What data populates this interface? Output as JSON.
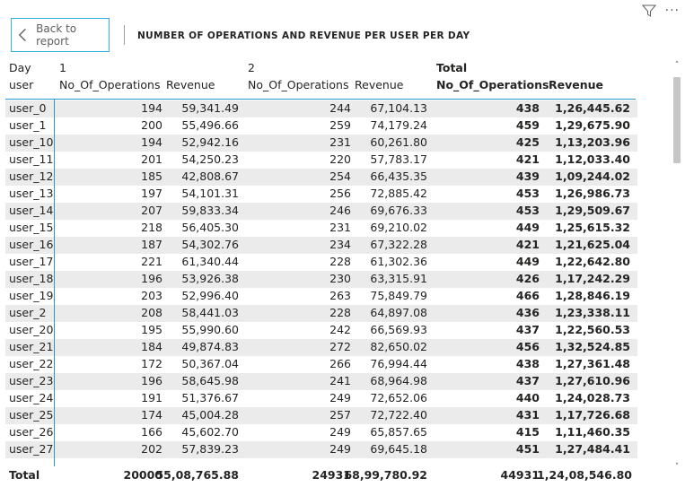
{
  "toolbar": {
    "back_label": "Back to report",
    "filter_icon": "filter-icon",
    "more_label": "···"
  },
  "title": "NUMBER OF OPERATIONS AND REVENUE PER USER PER DAY",
  "header": {
    "row1": {
      "col0": "Day",
      "g1": "1",
      "g2": "2",
      "gtotal": "Total"
    },
    "row2": {
      "col0": "user",
      "ops1": "No_Of_Operations",
      "rev1": "Revenue",
      "ops2": "No_Of_Operations",
      "rev2": "Revenue",
      "opst": "No_Of_Operations",
      "revt": "Revenue"
    }
  },
  "rows": [
    {
      "user": "user_0",
      "ops1": "194",
      "rev1": "59,341.49",
      "ops2": "244",
      "rev2": "67,104.13",
      "opst": "438",
      "revt": "1,26,445.62"
    },
    {
      "user": "user_1",
      "ops1": "200",
      "rev1": "55,496.66",
      "ops2": "259",
      "rev2": "74,179.24",
      "opst": "459",
      "revt": "1,29,675.90"
    },
    {
      "user": "user_10",
      "ops1": "194",
      "rev1": "52,942.16",
      "ops2": "231",
      "rev2": "60,261.80",
      "opst": "425",
      "revt": "1,13,203.96"
    },
    {
      "user": "user_11",
      "ops1": "201",
      "rev1": "54,250.23",
      "ops2": "220",
      "rev2": "57,783.17",
      "opst": "421",
      "revt": "1,12,033.40"
    },
    {
      "user": "user_12",
      "ops1": "185",
      "rev1": "42,808.67",
      "ops2": "254",
      "rev2": "66,435.35",
      "opst": "439",
      "revt": "1,09,244.02"
    },
    {
      "user": "user_13",
      "ops1": "197",
      "rev1": "54,101.31",
      "ops2": "256",
      "rev2": "72,885.42",
      "opst": "453",
      "revt": "1,26,986.73"
    },
    {
      "user": "user_14",
      "ops1": "207",
      "rev1": "59,833.34",
      "ops2": "246",
      "rev2": "69,676.33",
      "opst": "453",
      "revt": "1,29,509.67"
    },
    {
      "user": "user_15",
      "ops1": "218",
      "rev1": "56,405.30",
      "ops2": "231",
      "rev2": "69,210.02",
      "opst": "449",
      "revt": "1,25,615.32"
    },
    {
      "user": "user_16",
      "ops1": "187",
      "rev1": "54,302.76",
      "ops2": "234",
      "rev2": "67,322.28",
      "opst": "421",
      "revt": "1,21,625.04"
    },
    {
      "user": "user_17",
      "ops1": "221",
      "rev1": "61,340.44",
      "ops2": "228",
      "rev2": "61,302.36",
      "opst": "449",
      "revt": "1,22,642.80"
    },
    {
      "user": "user_18",
      "ops1": "196",
      "rev1": "53,926.38",
      "ops2": "230",
      "rev2": "63,315.91",
      "opst": "426",
      "revt": "1,17,242.29"
    },
    {
      "user": "user_19",
      "ops1": "203",
      "rev1": "52,996.40",
      "ops2": "263",
      "rev2": "75,849.79",
      "opst": "466",
      "revt": "1,28,846.19"
    },
    {
      "user": "user_2",
      "ops1": "208",
      "rev1": "58,441.03",
      "ops2": "228",
      "rev2": "64,897.08",
      "opst": "436",
      "revt": "1,23,338.11"
    },
    {
      "user": "user_20",
      "ops1": "195",
      "rev1": "55,990.60",
      "ops2": "242",
      "rev2": "66,569.93",
      "opst": "437",
      "revt": "1,22,560.53"
    },
    {
      "user": "user_21",
      "ops1": "184",
      "rev1": "49,874.83",
      "ops2": "272",
      "rev2": "82,650.02",
      "opst": "456",
      "revt": "1,32,524.85"
    },
    {
      "user": "user_22",
      "ops1": "172",
      "rev1": "50,367.04",
      "ops2": "266",
      "rev2": "76,994.44",
      "opst": "438",
      "revt": "1,27,361.48"
    },
    {
      "user": "user_23",
      "ops1": "196",
      "rev1": "58,645.98",
      "ops2": "241",
      "rev2": "68,964.98",
      "opst": "437",
      "revt": "1,27,610.96"
    },
    {
      "user": "user_24",
      "ops1": "191",
      "rev1": "51,376.67",
      "ops2": "249",
      "rev2": "72,652.06",
      "opst": "440",
      "revt": "1,24,028.73"
    },
    {
      "user": "user_25",
      "ops1": "174",
      "rev1": "45,004.28",
      "ops2": "257",
      "rev2": "72,722.40",
      "opst": "431",
      "revt": "1,17,726.68"
    },
    {
      "user": "user_26",
      "ops1": "166",
      "rev1": "45,602.70",
      "ops2": "249",
      "rev2": "65,857.65",
      "opst": "415",
      "revt": "1,11,460.35"
    },
    {
      "user": "user_27",
      "ops1": "202",
      "rev1": "57,839.23",
      "ops2": "249",
      "rev2": "69,645.18",
      "opst": "451",
      "revt": "1,27,484.41"
    }
  ],
  "total": {
    "label": "Total",
    "ops1": "20000",
    "rev1": "55,08,765.88",
    "ops2": "24931",
    "rev2": "68,99,780.92",
    "opst": "44931",
    "revt": "1,24,08,546.80"
  },
  "scrollbar": {
    "up_icon": "chevron-up-icon",
    "down_icon": "chevron-down-icon"
  }
}
